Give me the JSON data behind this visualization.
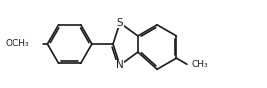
{
  "background": "#ffffff",
  "bond_color": "#1a1a1a",
  "bond_lw": 1.2,
  "dbo": 0.042,
  "shrink": 0.12,
  "atom_S": {
    "label": "S",
    "fontsize": 7.5
  },
  "atom_N": {
    "label": "N",
    "fontsize": 7.5
  },
  "methoxy_label": "OCH₃",
  "methyl_label": "CH₃",
  "methoxy_fontsize": 6.5,
  "methyl_fontsize": 6.5,
  "xlim": [
    -0.3,
    5.8
  ],
  "ylim": [
    -0.85,
    0.85
  ]
}
